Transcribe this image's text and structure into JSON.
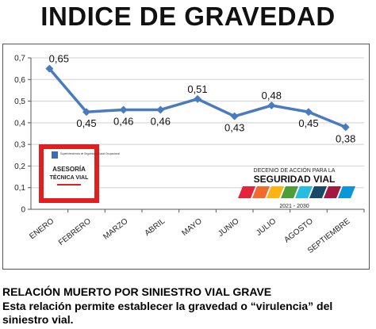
{
  "title": "INDICE DE GRAVEDAD",
  "chart_data": {
    "type": "line",
    "categories": [
      "ENERO",
      "FEBRERO",
      "MARZO",
      "ABRIL",
      "MAYO",
      "JUNIO",
      "JULIO",
      "AGOSTO",
      "SEPTIEMBRE"
    ],
    "values": [
      0.65,
      0.45,
      0.46,
      0.46,
      0.51,
      0.43,
      0.48,
      0.45,
      0.38
    ],
    "data_labels": [
      "0,65",
      "0,45",
      "0,46",
      "0,46",
      "0,51",
      "0,43",
      "0,48",
      "0,45",
      "0,38"
    ],
    "yticks": [
      "0",
      "0,1",
      "0,2",
      "0,3",
      "0,4",
      "0,5",
      "0,6",
      "0,7"
    ],
    "ylim": [
      0,
      0.7
    ],
    "grid": true,
    "line_color": "#4a7bbf"
  },
  "logo_asesoria": {
    "top_text": "Superintendencia de Seguridad y Salud Ocupacional",
    "line1": "ASESORÍA",
    "line2": "TÉCNICA VIAL",
    "border_color": "#e02020"
  },
  "logo_decenio": {
    "line1": "DECENIO DE ACCIÓN PARA LA",
    "line2": "SEGURIDAD VIAL",
    "years": "2021 - 2030",
    "stripe_colors": [
      "#e5243b",
      "#f26a2d",
      "#fcb316",
      "#4c9f38",
      "#26bde2",
      "#19486a",
      "#a21942",
      "#0a97d9"
    ]
  },
  "caption_title": "RELACIÓN MUERTO POR SINIESTRO VIAL GRAVE",
  "caption_body": "Esta relación permite establecer la gravedad o “virulencia” del siniestro vial."
}
